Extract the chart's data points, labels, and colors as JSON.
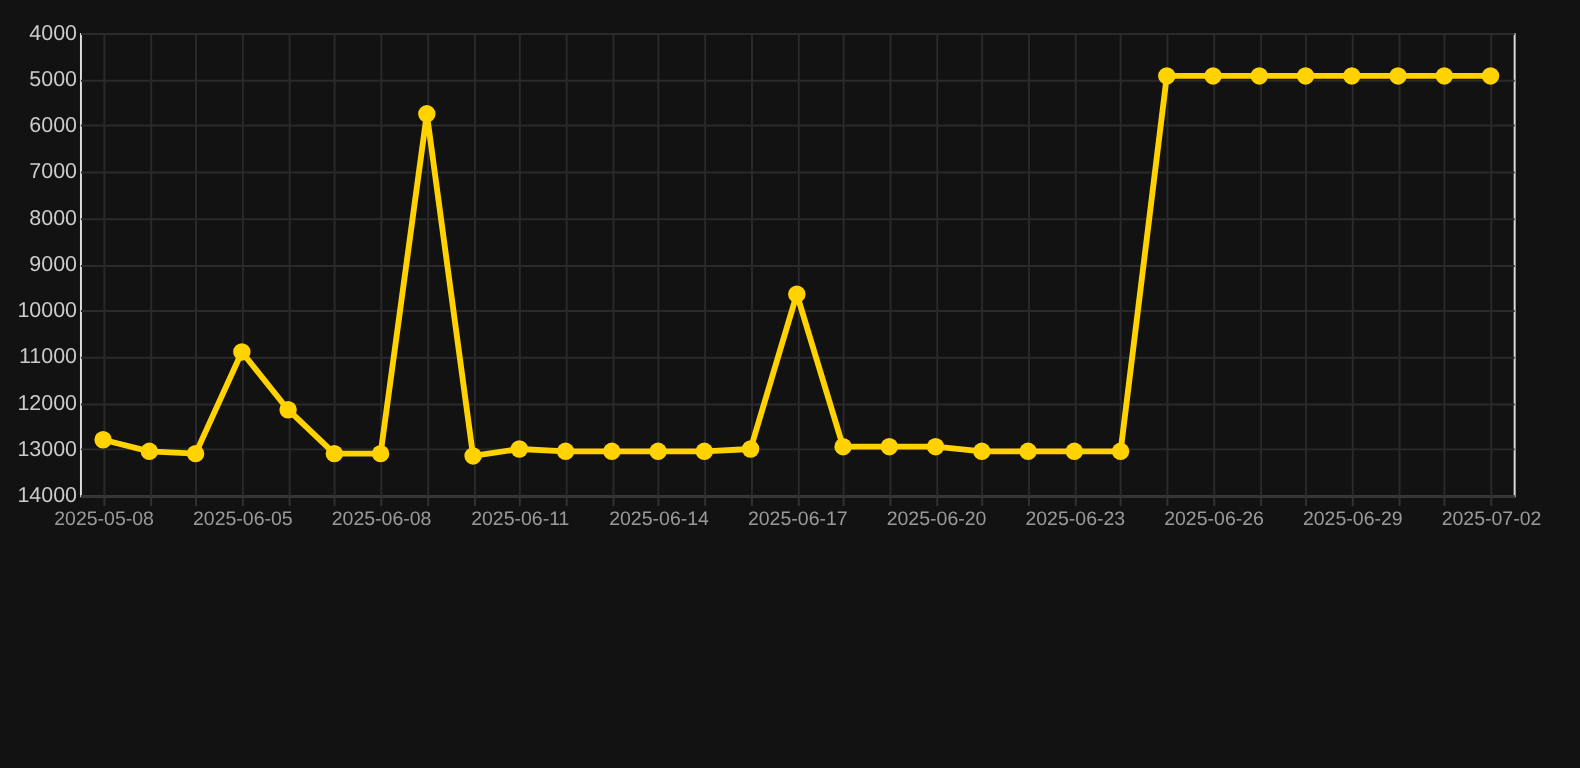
{
  "chart_data": {
    "type": "line",
    "categories": [
      "2025-05-08",
      null,
      null,
      "2025-06-05",
      null,
      null,
      "2025-06-08",
      null,
      null,
      "2025-06-11",
      null,
      null,
      "2025-06-14",
      null,
      null,
      "2025-06-17",
      null,
      null,
      "2025-06-20",
      null,
      null,
      "2025-06-23",
      null,
      null,
      "2025-06-26",
      null,
      null,
      "2025-06-29",
      null,
      null,
      "2025-07-02"
    ],
    "series": [
      {
        "color": "#ffd200",
        "values": [
          12800,
          13050,
          13100,
          10900,
          12150,
          13100,
          13100,
          5750,
          13150,
          13000,
          13050,
          13050,
          13050,
          13050,
          13000,
          9650,
          12950,
          12950,
          12950,
          13050,
          13050,
          13050,
          13050,
          4930,
          4930,
          4930,
          4930,
          4930,
          4930,
          4930,
          4930
        ]
      }
    ],
    "ylim": [
      14000,
      4000
    ],
    "yticks": [
      4000,
      5000,
      6000,
      7000,
      8000,
      9000,
      10000,
      11000,
      12000,
      13000,
      14000
    ],
    "grid": true,
    "marker": "circle"
  }
}
